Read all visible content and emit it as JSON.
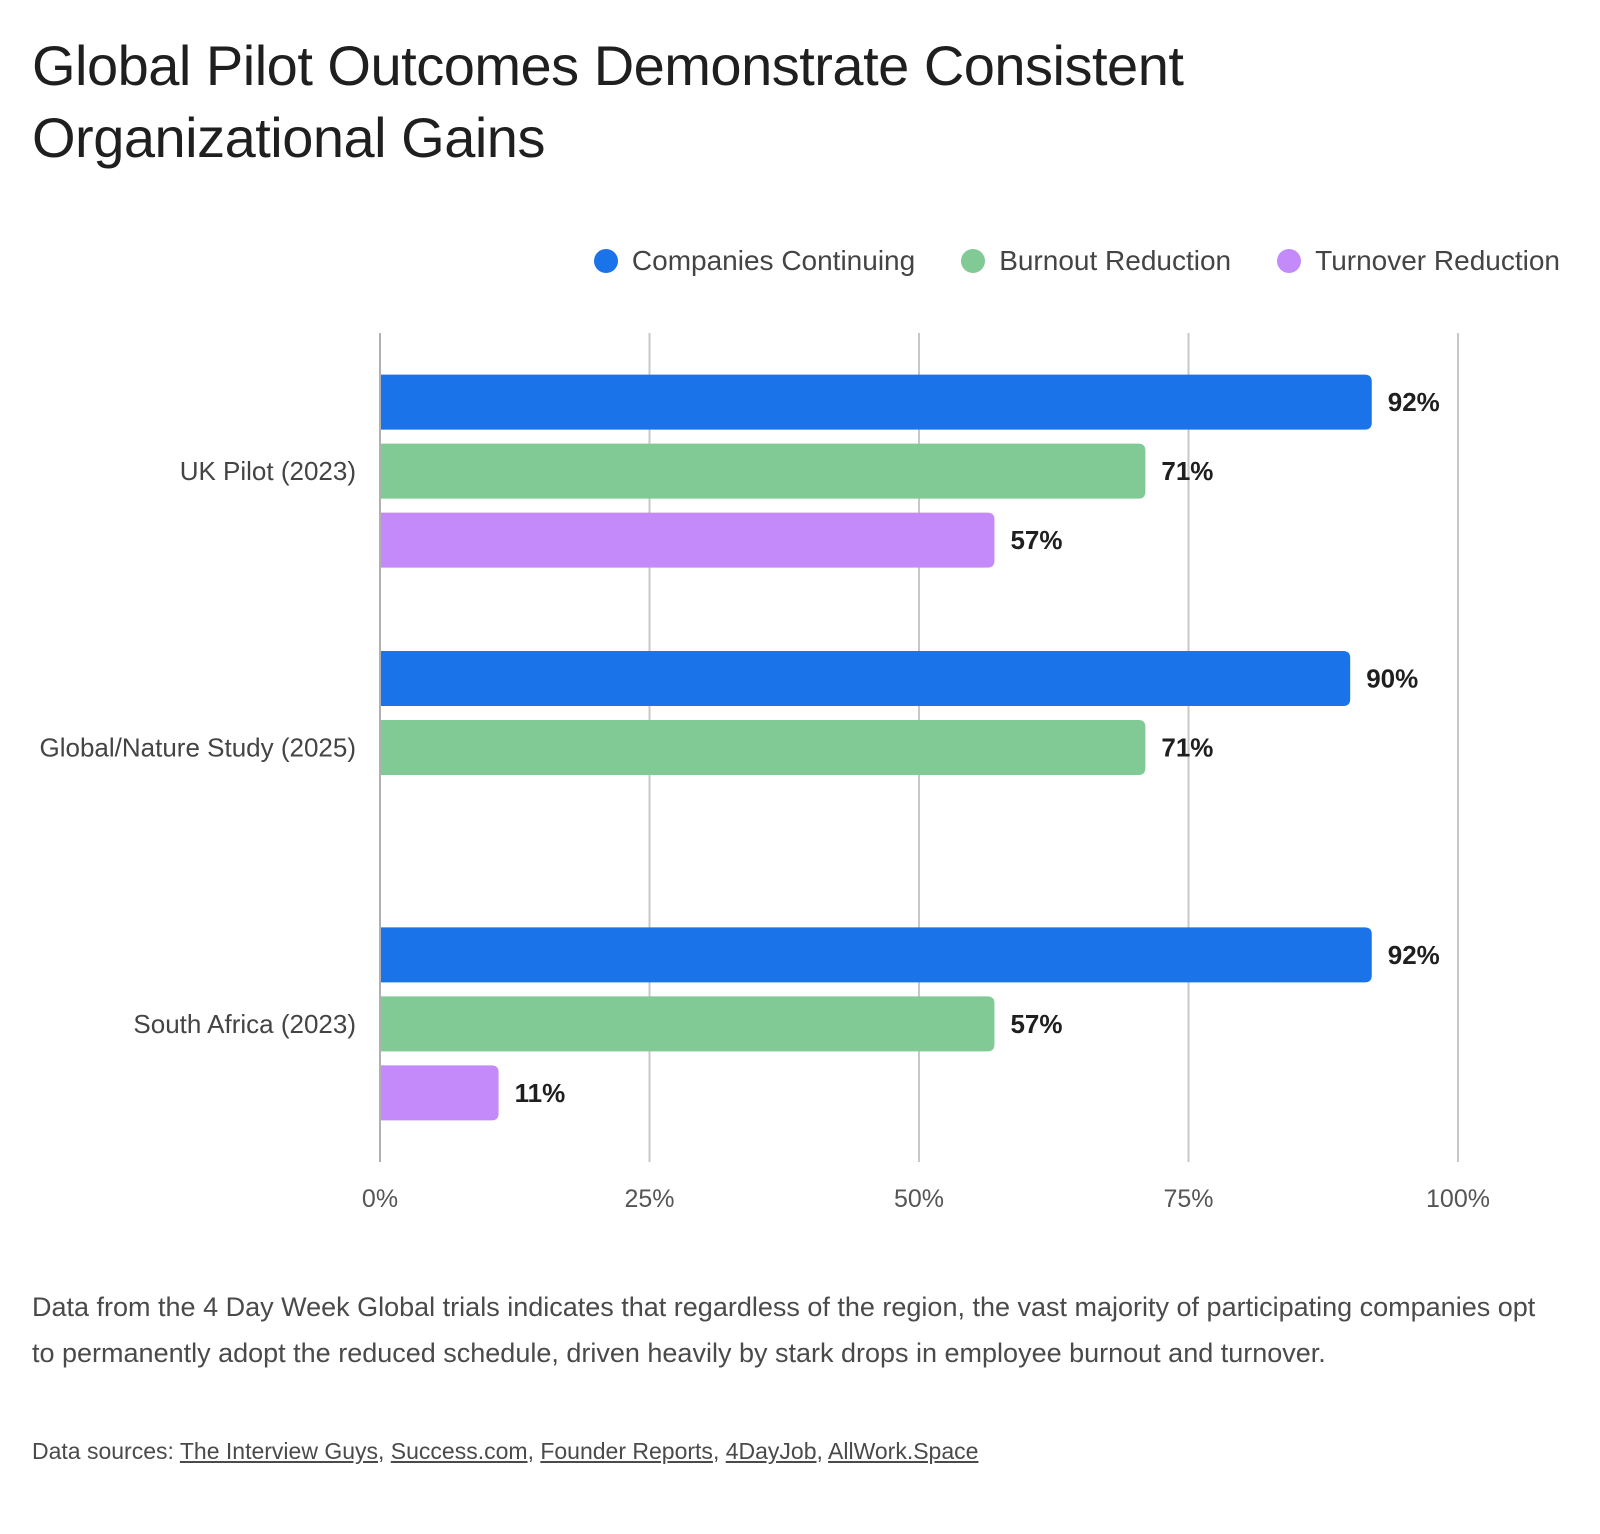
{
  "title": "Global Pilot Outcomes Demonstrate Consistent Organizational Gains",
  "caption": "Data from the 4 Day Week Global trials indicates that regardless of the region, the vast majority of participating companies opt to permanently adopt the reduced schedule, driven heavily by stark drops in employee burnout and turnover.",
  "sources": {
    "prefix": "Data sources: ",
    "links": [
      "The Interview Guys",
      "Success.com",
      "Founder Reports",
      "4DayJob",
      "AllWork.Space"
    ]
  },
  "chart_data": {
    "type": "bar",
    "orientation": "horizontal",
    "categories": [
      "UK Pilot (2023)",
      "Global/Nature Study (2025)",
      "South Africa (2023)"
    ],
    "series": [
      {
        "name": "Companies Continuing",
        "color": "#1a73e8",
        "values": [
          92,
          90,
          92
        ],
        "labels": [
          "92%",
          "90%",
          "92%"
        ]
      },
      {
        "name": "Burnout Reduction",
        "color": "#81c995",
        "values": [
          71,
          71,
          57
        ],
        "labels": [
          "71%",
          "71%",
          "57%"
        ]
      },
      {
        "name": "Turnover Reduction",
        "color": "#c58af9",
        "values": [
          57,
          null,
          11
        ],
        "labels": [
          "57%",
          null,
          "11%"
        ]
      }
    ],
    "xlim": [
      0,
      100
    ],
    "xticks": [
      0,
      25,
      50,
      75,
      100
    ],
    "xtick_labels": [
      "0%",
      "25%",
      "50%",
      "75%",
      "100%"
    ],
    "grid": true,
    "legend_position": "top-right"
  }
}
